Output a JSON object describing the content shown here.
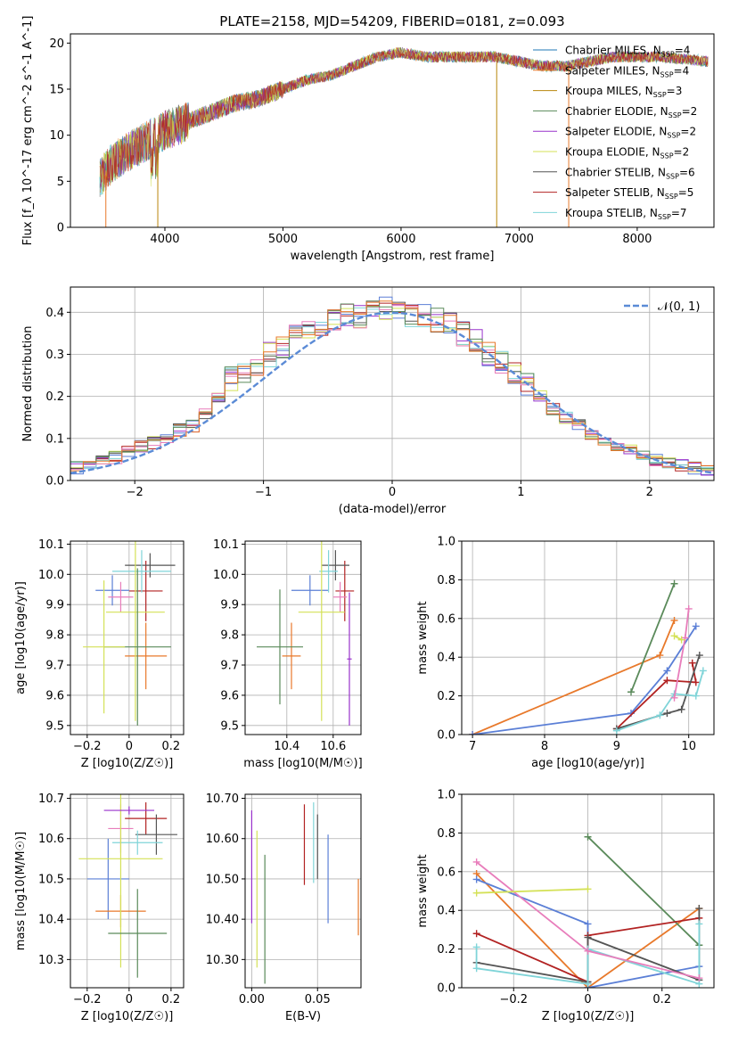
{
  "chart_data": [
    {
      "type": "line",
      "title": "PLATE=2158, MJD=54209, FIBERID=0181, z=0.093",
      "xlabel": "wavelength [Angstrom, rest frame]",
      "ylabel": "Flux [f_λ 10^-17 erg cm^-2 s^-1 A^-1]",
      "xlim": [
        3200,
        8650
      ],
      "ylim": [
        0,
        21
      ],
      "xticks": [
        4000,
        5000,
        6000,
        7000,
        8000
      ],
      "yticks": [
        0,
        5,
        10,
        15,
        20
      ],
      "grid": false,
      "legend_position": "top-right",
      "legend": [
        {
          "label": "Chabrier MILES, N_SSP=4",
          "color": "#1f77b4"
        },
        {
          "label": "Salpeter MILES, N_SSP=4",
          "color": "#e8792b"
        },
        {
          "label": "Kroupa MILES, N_SSP=3",
          "color": "#b8860b"
        },
        {
          "label": "Chabrier ELODIE, N_SSP=2",
          "color": "#5a8a5a"
        },
        {
          "label": "Salpeter ELODIE, N_SSP=2",
          "color": "#9932cc"
        },
        {
          "label": "Kroupa ELODIE, N_SSP=2",
          "color": "#d4e157"
        },
        {
          "label": "Chabrier STELIB, N_SSP=6",
          "color": "#555555"
        },
        {
          "label": "Salpeter STELIB, N_SSP=5",
          "color": "#b22222"
        },
        {
          "label": "Kroupa STELIB, N_SSP=7",
          "color": "#7fd4d8"
        }
      ],
      "spectrum_envelope": {
        "x": [
          3450,
          3600,
          3800,
          4000,
          4200,
          4400,
          4600,
          4800,
          5000,
          5200,
          5400,
          5600,
          5800,
          6000,
          6200,
          6400,
          6600,
          6800,
          7000,
          7200,
          7400,
          7600,
          7800,
          8000,
          8200,
          8600
        ],
        "y": [
          5.5,
          7.5,
          9,
          10.5,
          11.5,
          12.5,
          13.5,
          14,
          15,
          16,
          16.5,
          17.5,
          18.5,
          19,
          18.5,
          18.5,
          18.5,
          18.5,
          18,
          17.5,
          17.5,
          18,
          18.5,
          18.5,
          18.5,
          18
        ]
      }
    },
    {
      "type": "bar",
      "title": "",
      "xlabel": "(data-model)/error",
      "ylabel": "Normed distribution",
      "xlim": [
        -2.5,
        2.5
      ],
      "ylim": [
        0,
        0.46
      ],
      "xticks": [
        -2,
        -1,
        0,
        1,
        2
      ],
      "yticks": [
        0.0,
        0.1,
        0.2,
        0.3,
        0.4
      ],
      "grid": true,
      "legend_position": "top-right",
      "legend": [
        {
          "label": "𝒩(0, 1)",
          "color": "#5b8bd6",
          "style": "dashed"
        }
      ],
      "histogram": {
        "bins": [
          -2.45,
          -2.35,
          -2.25,
          -2.15,
          -2.05,
          -1.95,
          -1.85,
          -1.75,
          -1.65,
          -1.55,
          -1.45,
          -1.35,
          -1.25,
          -1.15,
          -1.05,
          -0.95,
          -0.85,
          -0.75,
          -0.65,
          -0.55,
          -0.45,
          -0.35,
          -0.25,
          -0.15,
          -0.05,
          0.05,
          0.15,
          0.25,
          0.35,
          0.45,
          0.55,
          0.65,
          0.75,
          0.85,
          0.95,
          1.05,
          1.15,
          1.25,
          1.35,
          1.45,
          1.55,
          1.65,
          1.75,
          1.85,
          1.95,
          2.05,
          2.15,
          2.25,
          2.35,
          2.45
        ],
        "values": [
          0.03,
          0.04,
          0.045,
          0.055,
          0.07,
          0.08,
          0.09,
          0.1,
          0.12,
          0.13,
          0.16,
          0.2,
          0.24,
          0.26,
          0.28,
          0.3,
          0.32,
          0.34,
          0.36,
          0.37,
          0.38,
          0.39,
          0.39,
          0.4,
          0.41,
          0.4,
          0.39,
          0.39,
          0.38,
          0.37,
          0.35,
          0.33,
          0.3,
          0.28,
          0.25,
          0.23,
          0.2,
          0.17,
          0.15,
          0.13,
          0.11,
          0.09,
          0.08,
          0.07,
          0.06,
          0.05,
          0.04,
          0.035,
          0.03,
          0.025
        ]
      }
    },
    {
      "type": "scatter",
      "title": "",
      "xlabel": "Z [log10(Z/Z☉)]",
      "ylabel": "age [log10(age/yr)]",
      "xlim": [
        -0.28,
        0.26
      ],
      "ylim": [
        9.47,
        10.11
      ],
      "xticks": [
        -0.2,
        0.0,
        0.2
      ],
      "yticks": [
        9.5,
        9.6,
        9.7,
        9.8,
        9.9,
        10.0,
        10.1
      ],
      "grid": true,
      "errorbars": [
        {
          "x": -0.08,
          "y": 9.947,
          "xerr": 0.08,
          "yerr": 0.05,
          "color": "#5b7fd6"
        },
        {
          "x": 0.08,
          "y": 9.945,
          "xerr": 0.08,
          "yerr": 0.1,
          "color": "#b22222"
        },
        {
          "x": 0.08,
          "y": 9.73,
          "xerr": 0.1,
          "yerr": 0.11,
          "color": "#e8792b"
        },
        {
          "x": 0.1,
          "y": 10.03,
          "xerr": 0.12,
          "yerr": 0.04,
          "color": "#555555"
        },
        {
          "x": 0.06,
          "y": 10.01,
          "xerr": 0.14,
          "yerr": 0.07,
          "color": "#7fd4d8"
        },
        {
          "x": -0.04,
          "y": 9.925,
          "xerr": 0.06,
          "yerr": 0.05,
          "color": "#e87dbb"
        },
        {
          "x": 0.03,
          "y": 9.875,
          "xerr": 0.14,
          "yerr": 0.36,
          "color": "#d4e157"
        },
        {
          "x": 0.04,
          "y": 9.76,
          "xerr": 0.16,
          "yerr": 0.26,
          "color": "#5a8a5a"
        },
        {
          "x": -0.12,
          "y": 9.76,
          "xerr": 0.1,
          "yerr": 0.22,
          "color": "#d4e157"
        }
      ]
    },
    {
      "type": "scatter",
      "title": "",
      "xlabel": "mass [log10(M/M☉)]",
      "ylabel": "",
      "xlim": [
        10.22,
        10.72
      ],
      "ylim": [
        9.47,
        10.11
      ],
      "xticks": [
        10.4,
        10.6
      ],
      "yticks": [
        9.5,
        9.6,
        9.7,
        9.8,
        9.9,
        10.0,
        10.1
      ],
      "grid": true,
      "errorbars": [
        {
          "x": 10.5,
          "y": 9.947,
          "xerr": 0.08,
          "yerr": 0.05,
          "color": "#5b7fd6"
        },
        {
          "x": 10.65,
          "y": 9.945,
          "xerr": 0.04,
          "yerr": 0.1,
          "color": "#b22222"
        },
        {
          "x": 10.42,
          "y": 9.73,
          "xerr": 0.04,
          "yerr": 0.11,
          "color": "#e8792b"
        },
        {
          "x": 10.61,
          "y": 10.03,
          "xerr": 0.06,
          "yerr": 0.05,
          "color": "#555555"
        },
        {
          "x": 10.58,
          "y": 10.01,
          "xerr": 0.04,
          "yerr": 0.07,
          "color": "#7fd4d8"
        },
        {
          "x": 10.63,
          "y": 9.925,
          "xerr": 0.03,
          "yerr": 0.05,
          "color": "#e87dbb"
        },
        {
          "x": 10.55,
          "y": 9.875,
          "xerr": 0.1,
          "yerr": 0.36,
          "color": "#d4e157"
        },
        {
          "x": 10.37,
          "y": 9.76,
          "xerr": 0.1,
          "yerr": 0.19,
          "color": "#5a8a5a"
        },
        {
          "x": 10.67,
          "y": 9.72,
          "xerr": 0.01,
          "yerr": 0.22,
          "color": "#9932cc"
        }
      ]
    },
    {
      "type": "line",
      "title": "",
      "xlabel": "age [log10(age/yr)]",
      "ylabel": "mass weight",
      "xlim": [
        6.85,
        10.35
      ],
      "ylim": [
        0.0,
        1.0
      ],
      "xticks": [
        7,
        8,
        9,
        10
      ],
      "yticks": [
        0.0,
        0.2,
        0.4,
        0.6,
        0.8,
        1.0
      ],
      "grid": true,
      "series": [
        {
          "color": "#e8792b",
          "x": [
            7.0,
            9.6,
            9.8
          ],
          "y": [
            0.0,
            0.41,
            0.59
          ]
        },
        {
          "color": "#5b7fd6",
          "x": [
            7.0,
            9.2,
            9.7,
            10.1
          ],
          "y": [
            0.0,
            0.11,
            0.33,
            0.56
          ]
        },
        {
          "color": "#5a8a5a",
          "x": [
            9.2,
            9.8
          ],
          "y": [
            0.22,
            0.78
          ]
        },
        {
          "color": "#b22222",
          "x": [
            9.0,
            9.7,
            10.1,
            10.05
          ],
          "y": [
            0.03,
            0.28,
            0.27,
            0.37
          ]
        },
        {
          "color": "#555555",
          "x": [
            9.0,
            9.7,
            9.9,
            10.15
          ],
          "y": [
            0.03,
            0.11,
            0.13,
            0.41
          ]
        },
        {
          "color": "#7fd4d8",
          "x": [
            9.0,
            9.6,
            9.8,
            10.1,
            10.2
          ],
          "y": [
            0.02,
            0.1,
            0.21,
            0.2,
            0.33
          ]
        },
        {
          "color": "#e87dbb",
          "x": [
            9.8,
            9.95,
            10.0
          ],
          "y": [
            0.19,
            0.5,
            0.65
          ]
        },
        {
          "color": "#d4e157",
          "x": [
            9.8,
            9.9
          ],
          "y": [
            0.51,
            0.49
          ]
        }
      ]
    },
    {
      "type": "scatter",
      "title": "",
      "xlabel": "Z [log10(Z/Z☉)]",
      "ylabel": "mass [log10(M/M☉)]",
      "xlim": [
        -0.28,
        0.26
      ],
      "ylim": [
        10.23,
        10.71
      ],
      "xticks": [
        -0.2,
        0.0,
        0.2
      ],
      "yticks": [
        10.3,
        10.4,
        10.5,
        10.6,
        10.7
      ],
      "grid": true,
      "errorbars": [
        {
          "x": -0.1,
          "y": 10.5,
          "xerr": 0.1,
          "yerr": 0.1,
          "color": "#5b7fd6"
        },
        {
          "x": 0.08,
          "y": 10.65,
          "xerr": 0.1,
          "yerr": 0.04,
          "color": "#b22222"
        },
        {
          "x": -0.04,
          "y": 10.42,
          "xerr": 0.12,
          "yerr": 0.04,
          "color": "#e8792b"
        },
        {
          "x": 0.13,
          "y": 10.61,
          "xerr": 0.1,
          "yerr": 0.05,
          "color": "#555555"
        },
        {
          "x": 0.04,
          "y": 10.59,
          "xerr": 0.12,
          "yerr": 0.03,
          "color": "#7fd4d8"
        },
        {
          "x": -0.04,
          "y": 10.625,
          "xerr": 0.06,
          "yerr": 0.06,
          "color": "#e87dbb"
        },
        {
          "x": -0.04,
          "y": 10.55,
          "xerr": 0.2,
          "yerr": 0.27,
          "color": "#d4e157"
        },
        {
          "x": 0.04,
          "y": 10.365,
          "xerr": 0.14,
          "yerr": 0.11,
          "color": "#5a8a5a"
        },
        {
          "x": 0.0,
          "y": 10.67,
          "xerr": 0.12,
          "yerr": 0.01,
          "color": "#9932cc"
        }
      ]
    },
    {
      "type": "scatter",
      "title": "",
      "xlabel": "E(B-V)",
      "ylabel": "",
      "xlim": [
        -0.005,
        0.083
      ],
      "ylim": [
        10.23,
        10.71
      ],
      "xticks": [
        0.0,
        0.05
      ],
      "yticks": [
        10.3,
        10.4,
        10.5,
        10.6,
        10.7
      ],
      "grid": true,
      "errorbars": [
        {
          "x": 0.0,
          "y": 10.53,
          "yerr": 0.14,
          "color": "#9932cc"
        },
        {
          "x": 0.004,
          "y": 10.45,
          "yerr": 0.17,
          "color": "#d4e157"
        },
        {
          "x": 0.01,
          "y": 10.4,
          "yerr": 0.16,
          "color": "#5a8a5a"
        },
        {
          "x": 0.04,
          "y": 10.585,
          "yerr": 0.1,
          "color": "#b22222"
        },
        {
          "x": 0.047,
          "y": 10.59,
          "yerr": 0.1,
          "color": "#7fd4d8"
        },
        {
          "x": 0.05,
          "y": 10.58,
          "yerr": 0.08,
          "color": "#555555"
        },
        {
          "x": 0.058,
          "y": 10.5,
          "yerr": 0.11,
          "color": "#5b7fd6"
        },
        {
          "x": 0.081,
          "y": 10.43,
          "yerr": 0.07,
          "color": "#e8792b"
        }
      ]
    },
    {
      "type": "line",
      "title": "",
      "xlabel": "Z [log10(Z/Z☉)]",
      "ylabel": "mass weight",
      "xlim": [
        -0.34,
        0.34
      ],
      "ylim": [
        0.0,
        1.0
      ],
      "xticks": [
        -0.2,
        0.0,
        0.2
      ],
      "yticks": [
        0.0,
        0.2,
        0.4,
        0.6,
        0.8,
        1.0
      ],
      "grid": true,
      "series": [
        {
          "color": "#e8792b",
          "x": [
            -0.3,
            0.0,
            0.3
          ],
          "y": [
            0.59,
            0.0,
            0.41
          ]
        },
        {
          "color": "#5b7fd6",
          "x": [
            -0.3,
            0.0,
            0.0,
            0.3
          ],
          "y": [
            0.56,
            0.33,
            0.0,
            0.11
          ]
        },
        {
          "color": "#5a8a5a",
          "x": [
            0.0,
            0.3
          ],
          "y": [
            0.78,
            0.22
          ]
        },
        {
          "color": "#b22222",
          "x": [
            -0.3,
            0.0,
            0.0,
            0.3
          ],
          "y": [
            0.28,
            0.03,
            0.27,
            0.36
          ]
        },
        {
          "color": "#555555",
          "x": [
            -0.3,
            0.0,
            0.0,
            0.3,
            0.3
          ],
          "y": [
            0.13,
            0.03,
            0.26,
            0.04,
            0.41
          ]
        },
        {
          "color": "#7fd4d8",
          "x": [
            -0.3,
            -0.3,
            0.0,
            0.0,
            0.3,
            0.3
          ],
          "y": [
            0.21,
            0.1,
            0.02,
            0.2,
            0.02,
            0.33
          ]
        },
        {
          "color": "#e87dbb",
          "x": [
            -0.3,
            0.0,
            0.3
          ],
          "y": [
            0.65,
            0.19,
            0.05
          ]
        },
        {
          "color": "#d4e157",
          "x": [
            -0.3,
            0.0
          ],
          "y": [
            0.49,
            0.51
          ]
        }
      ]
    }
  ]
}
